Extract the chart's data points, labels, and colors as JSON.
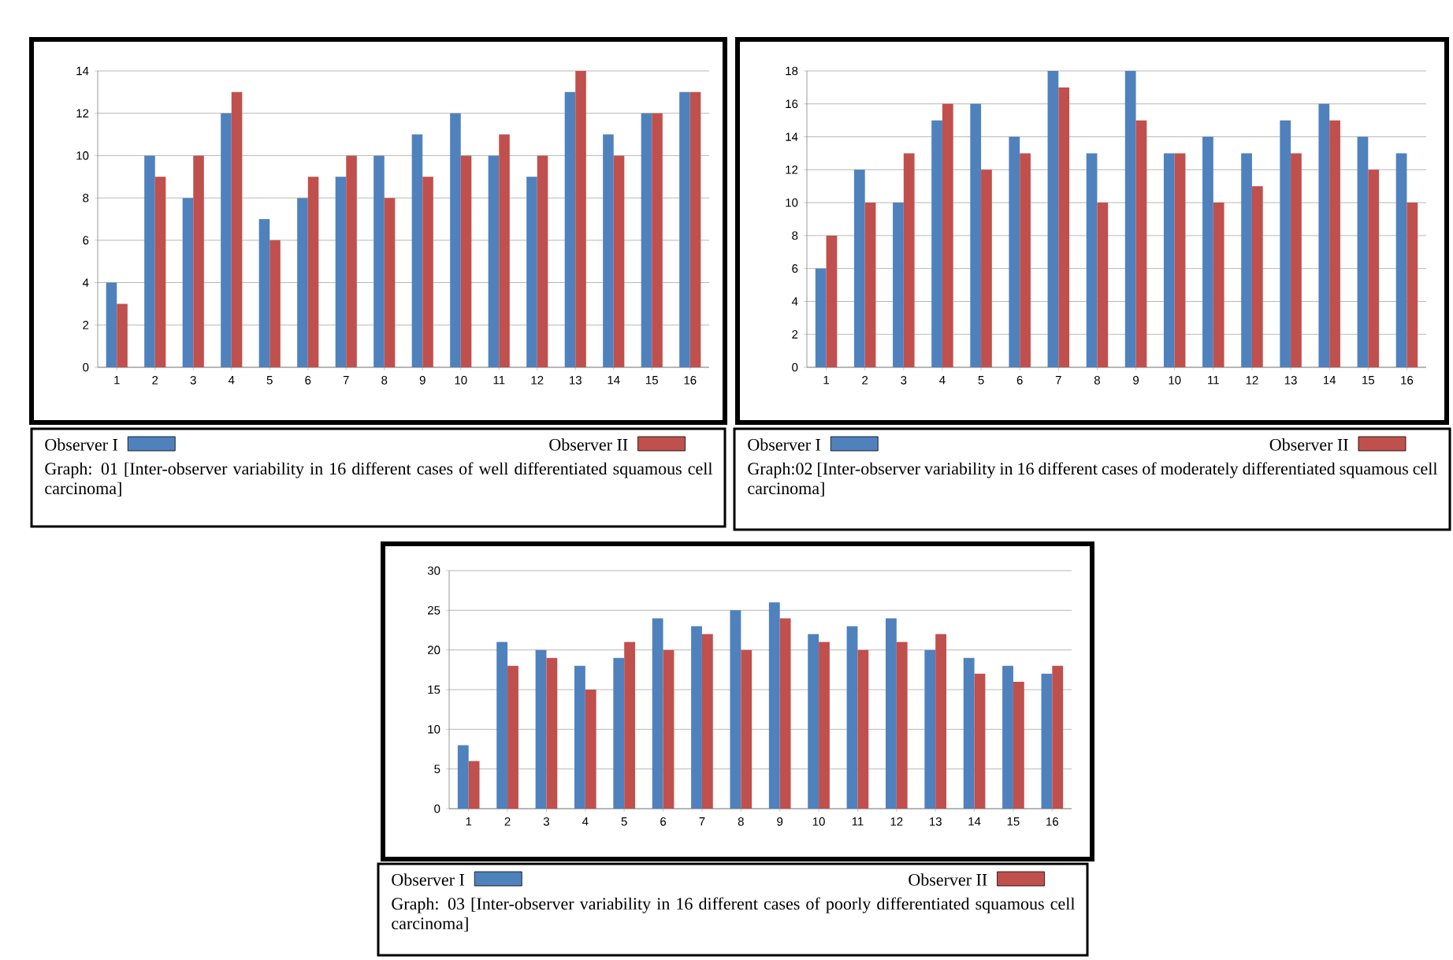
{
  "chart_data": [
    {
      "type": "bar",
      "categories": [
        "1",
        "2",
        "3",
        "4",
        "5",
        "6",
        "7",
        "8",
        "9",
        "10",
        "11",
        "12",
        "13",
        "14",
        "15",
        "16"
      ],
      "ylim": [
        0,
        14
      ],
      "yticks": [
        0,
        2,
        4,
        6,
        8,
        10,
        12,
        14
      ],
      "grid": "y",
      "legend": "bottom",
      "series": [
        {
          "name": "Observer I",
          "color": "#4f81bd",
          "values": [
            4,
            10,
            8,
            12,
            7,
            8,
            9,
            10,
            11,
            12,
            10,
            9,
            13,
            11,
            12,
            13
          ]
        },
        {
          "name": "Observer II",
          "color": "#c0504d",
          "values": [
            3,
            9,
            10,
            13,
            6,
            9,
            10,
            8,
            9,
            10,
            11,
            10,
            14,
            10,
            12,
            13
          ]
        }
      ],
      "annotations": [
        "Graph: 01 [Inter-observer variability in 16 different cases of well differentiated squamous cell carcinoma]"
      ]
    },
    {
      "type": "bar",
      "categories": [
        "1",
        "2",
        "3",
        "4",
        "5",
        "6",
        "7",
        "8",
        "9",
        "10",
        "11",
        "12",
        "13",
        "14",
        "15",
        "16"
      ],
      "ylim": [
        0,
        18
      ],
      "yticks": [
        0,
        2,
        4,
        6,
        8,
        10,
        12,
        14,
        16,
        18
      ],
      "grid": "y",
      "legend": "bottom",
      "series": [
        {
          "name": "Observer I",
          "color": "#4f81bd",
          "values": [
            6,
            12,
            10,
            15,
            16,
            14,
            18,
            13,
            18,
            13,
            14,
            13,
            15,
            16,
            14,
            13
          ]
        },
        {
          "name": "Observer II",
          "color": "#c0504d",
          "values": [
            8,
            10,
            13,
            16,
            12,
            13,
            17,
            10,
            15,
            13,
            10,
            11,
            13,
            15,
            12,
            10
          ]
        }
      ],
      "annotations": [
        "Graph:02 [Inter-observer variability in 16 different cases of moderately differentiated squamous cell carcinoma]"
      ]
    },
    {
      "type": "bar",
      "categories": [
        "1",
        "2",
        "3",
        "4",
        "5",
        "6",
        "7",
        "8",
        "9",
        "10",
        "11",
        "12",
        "13",
        "14",
        "15",
        "16"
      ],
      "ylim": [
        0,
        30
      ],
      "yticks": [
        0,
        5,
        10,
        15,
        20,
        25,
        30
      ],
      "grid": "y",
      "legend": "bottom",
      "series": [
        {
          "name": "Observer I",
          "color": "#4f81bd",
          "values": [
            8,
            21,
            20,
            18,
            19,
            24,
            23,
            25,
            26,
            22,
            23,
            24,
            20,
            19,
            18,
            17
          ]
        },
        {
          "name": "Observer II",
          "color": "#c0504d",
          "values": [
            6,
            18,
            19,
            15,
            21,
            20,
            22,
            20,
            24,
            21,
            20,
            21,
            22,
            17,
            16,
            18
          ]
        }
      ],
      "annotations": [
        "Graph: 03 [Inter-observer variability in 16 different cases of poorly differentiated squamous cell carcinoma]"
      ]
    }
  ]
}
